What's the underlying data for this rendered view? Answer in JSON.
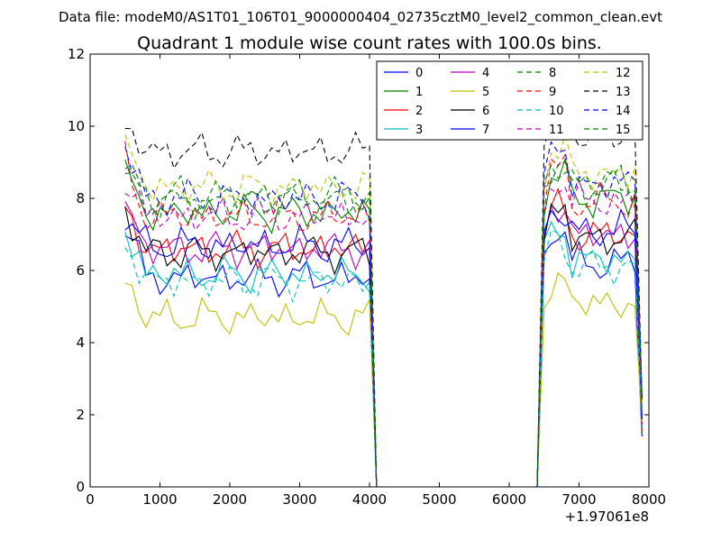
{
  "chart_data": {
    "type": "line",
    "suptitle": "Data file: modeM0/AS1T01_106T01_9000000404_02735cztM0_level2_common_clean.evt",
    "title": "Quadrant 1 module wise count rates with 100.0s bins.",
    "xlabel": "",
    "ylabel": "",
    "x_offset_label": "+1.97061e8",
    "xlim": [
      0,
      8000
    ],
    "ylim": [
      0,
      12
    ],
    "x_ticks": [
      0,
      1000,
      2000,
      3000,
      4000,
      5000,
      6000,
      7000,
      8000
    ],
    "y_ticks": [
      0,
      2,
      4,
      6,
      8,
      10,
      12
    ],
    "x_tick_labels": [
      "0",
      "1000",
      "2000",
      "3000",
      "4000",
      "5000",
      "6000",
      "7000",
      "8000"
    ],
    "y_tick_labels": [
      "0",
      "2",
      "4",
      "6",
      "8",
      "10",
      "12"
    ],
    "legend_position": "top-right",
    "series": [
      {
        "name": "0",
        "color": "#0000ff",
        "dash": "solid",
        "base": 5.8,
        "peak": 7.3
      },
      {
        "name": "1",
        "color": "#008000",
        "dash": "solid",
        "base": 7.6,
        "peak": 8.6
      },
      {
        "name": "2",
        "color": "#ff0000",
        "dash": "solid",
        "base": 6.6,
        "peak": 7.7
      },
      {
        "name": "3",
        "color": "#00bfbf",
        "dash": "solid",
        "base": 5.9,
        "peak": 7.2
      },
      {
        "name": "4",
        "color": "#bf00bf",
        "dash": "solid",
        "base": 6.6,
        "peak": 7.9
      },
      {
        "name": "5",
        "color": "#bfbf00",
        "dash": "solid",
        "base": 4.7,
        "peak": 5.7
      },
      {
        "name": "6",
        "color": "#000000",
        "dash": "solid",
        "base": 6.5,
        "peak": 7.7
      },
      {
        "name": "7",
        "color": "#0000ff",
        "dash": "solid",
        "base": 6.7,
        "peak": 7.4
      },
      {
        "name": "8",
        "color": "#008000",
        "dash": "dashed",
        "base": 7.9,
        "peak": 8.8
      },
      {
        "name": "9",
        "color": "#ff0000",
        "dash": "dashed",
        "base": 7.5,
        "peak": 9.0
      },
      {
        "name": "10",
        "color": "#00bfbf",
        "dash": "dashed",
        "base": 5.7,
        "peak": 6.9
      },
      {
        "name": "11",
        "color": "#bf00bf",
        "dash": "dashed",
        "base": 7.5,
        "peak": 8.5
      },
      {
        "name": "12",
        "color": "#bfbf00",
        "dash": "dashed",
        "base": 8.3,
        "peak": 9.5
      },
      {
        "name": "13",
        "color": "#000000",
        "dash": "dashed",
        "base": 9.3,
        "peak": 10.0
      },
      {
        "name": "14",
        "color": "#0000ff",
        "dash": "dashed",
        "base": 8.0,
        "peak": 9.5
      },
      {
        "name": "15",
        "color": "#008000",
        "dash": "dashed",
        "base": 8.1,
        "peak": 8.6
      }
    ],
    "segments": {
      "first": {
        "x_start": 500,
        "x_end": 4000,
        "step": 100
      },
      "gap": {
        "x_start": 4100,
        "x_end": 6400,
        "value": 0
      },
      "second": {
        "x_start": 6500,
        "x_end": 7800,
        "step": 100
      },
      "tail": {
        "x": 7900
      }
    }
  }
}
